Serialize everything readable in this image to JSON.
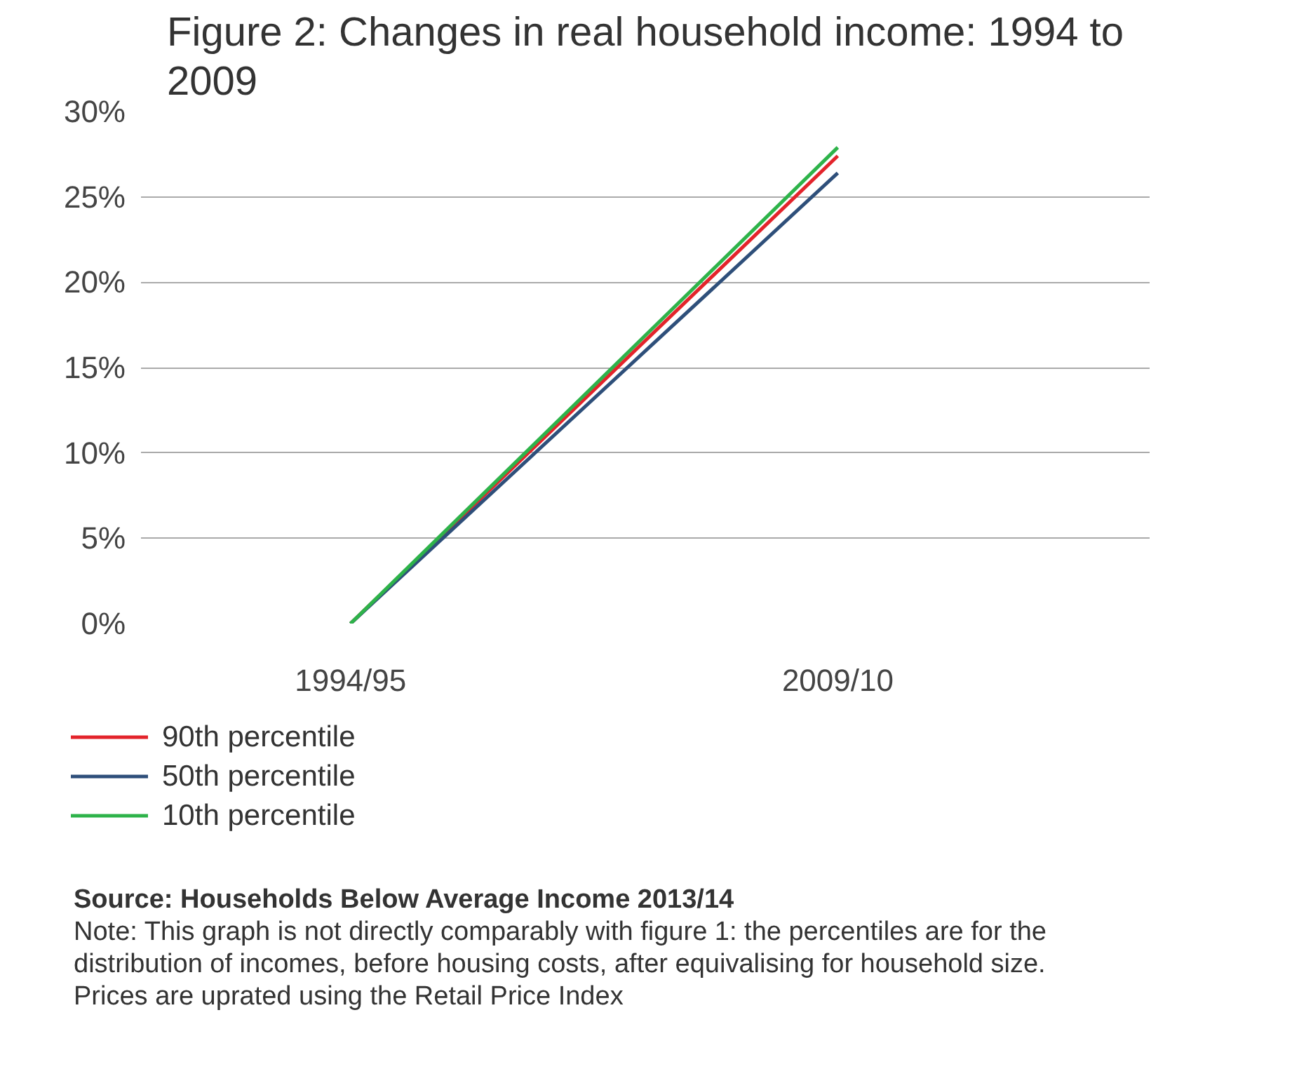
{
  "chart_data": {
    "type": "line",
    "title": "Figure 2: Changes in real household income: 1994 to 2009",
    "categories": [
      "1994/95",
      "2009/10"
    ],
    "series": [
      {
        "name": "90th percentile",
        "color": "#e3242b",
        "values": [
          0,
          27.4
        ]
      },
      {
        "name": "50th percentile",
        "color": "#2e4f7a",
        "values": [
          0,
          26.4
        ]
      },
      {
        "name": "10th percentile",
        "color": "#2eb34a",
        "values": [
          0,
          27.9
        ]
      }
    ],
    "ylim": [
      0,
      30
    ],
    "yticks": [
      {
        "value": 0,
        "label": "0%"
      },
      {
        "value": 5,
        "label": "5%"
      },
      {
        "value": 10,
        "label": "10%"
      },
      {
        "value": 15,
        "label": "15%"
      },
      {
        "value": 20,
        "label": "20%"
      },
      {
        "value": 25,
        "label": "25%"
      },
      {
        "value": 30,
        "label": "30%"
      }
    ],
    "grid": "y",
    "legend": "bottom",
    "marker": "none",
    "line_style": "solid",
    "annotations": [
      "Source: Households Below Average Income 2013/14",
      "Note: This graph is not directly comparably with figure 1: the percentiles are for the distribution of incomes, before housing costs, after equivalising for household size. Prices are uprated using the Retail Price Index"
    ]
  }
}
